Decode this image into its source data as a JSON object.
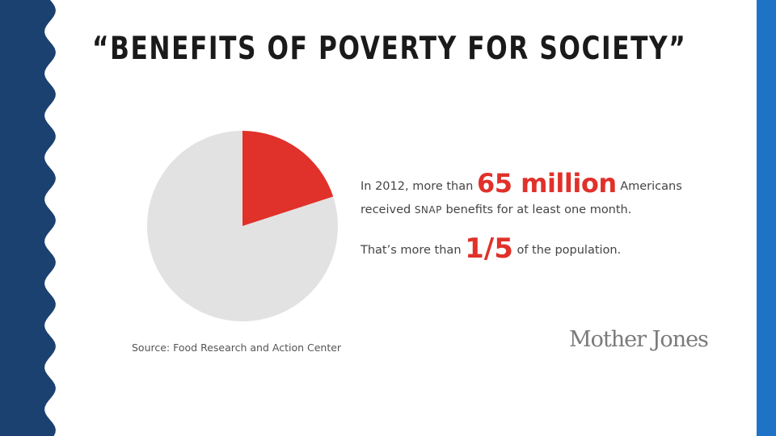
{
  "slide": {
    "title": "“BENEFITS OF POVERTY FOR SOCIETY”",
    "left_band_color": "#1b4170",
    "right_band_color": "#1f73c7"
  },
  "infographic": {
    "line1_pre": "In 2012, more than ",
    "line1_big": "65 million",
    "line1_post": " Americans",
    "line2_pre": "received ",
    "line2_snap": "SNAP",
    "line2_post": " benefits for at least one month.",
    "line3_pre": "That’s more than ",
    "line3_frac": "1/5",
    "line3_post": " of the population.",
    "accent_color": "#e0312a",
    "source": "Source: Food Research and Action Center",
    "logo": "Mother Jones"
  },
  "chart_data": {
    "type": "pie",
    "title": "",
    "slices": [
      {
        "value": 0.2,
        "color": "#e0312a"
      },
      {
        "value": 0.8,
        "color": "#e2e2e2"
      }
    ],
    "start_angle_deg": 0,
    "direction": "clockwise"
  }
}
